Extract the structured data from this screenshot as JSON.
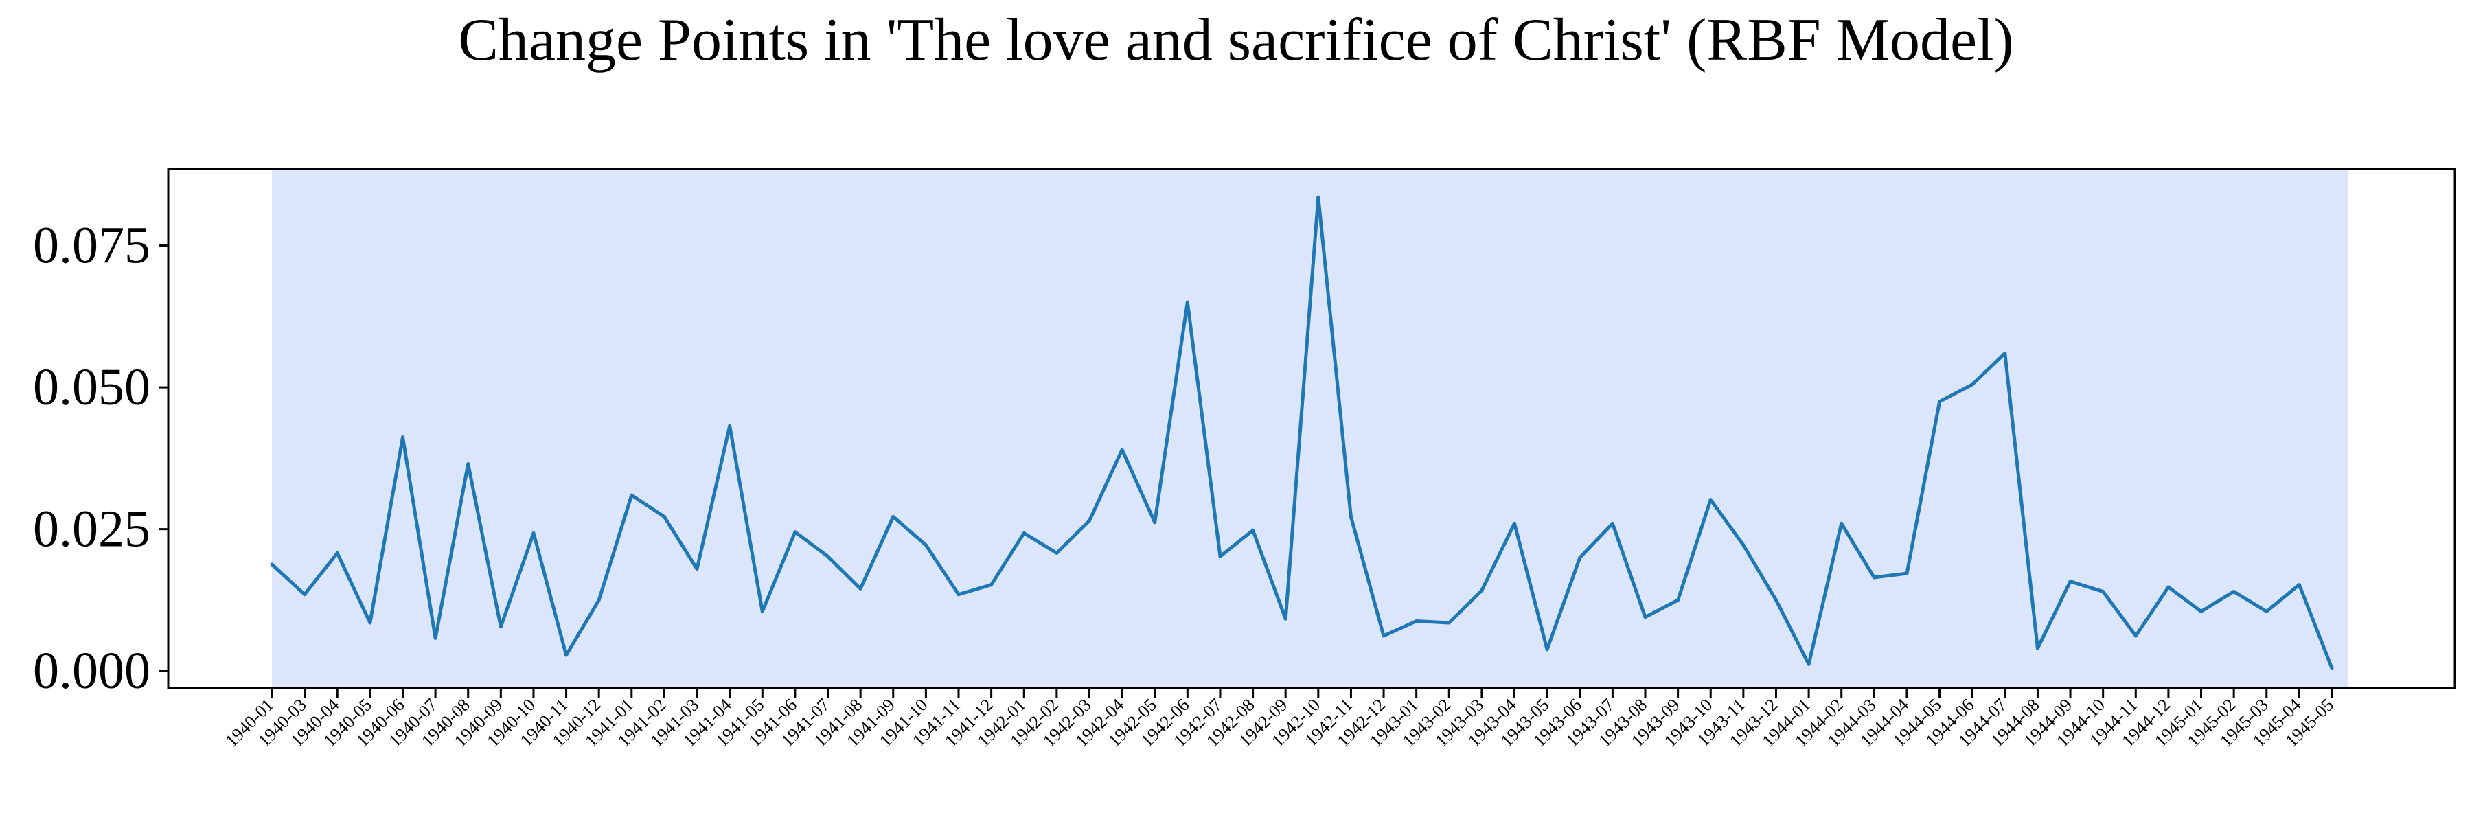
{
  "chart_data": {
    "type": "line",
    "title": "Change Points in 'The love and sacrifice of Christ' (RBF Model)",
    "xlabel": "",
    "ylabel": "",
    "ylim": [
      -0.003,
      0.0885
    ],
    "yticks": [
      "0.000",
      "0.025",
      "0.050",
      "0.075"
    ],
    "grid": false,
    "line_color": "#1f77b4",
    "segment_color": "#dbe6fa",
    "change_point_segment": {
      "start": "1940-01",
      "end": "1945-05"
    },
    "categories": [
      "1940-01",
      "1940-03",
      "1940-04",
      "1940-05",
      "1940-06",
      "1940-07",
      "1940-08",
      "1940-09",
      "1940-10",
      "1940-11",
      "1940-12",
      "1941-01",
      "1941-02",
      "1941-03",
      "1941-04",
      "1941-05",
      "1941-06",
      "1941-07",
      "1941-08",
      "1941-09",
      "1941-10",
      "1941-11",
      "1941-12",
      "1942-01",
      "1942-02",
      "1942-03",
      "1942-04",
      "1942-05",
      "1942-06",
      "1942-07",
      "1942-08",
      "1942-09",
      "1942-10",
      "1942-11",
      "1942-12",
      "1943-01",
      "1943-02",
      "1943-03",
      "1943-04",
      "1943-05",
      "1943-06",
      "1943-07",
      "1943-08",
      "1943-09",
      "1943-10",
      "1943-11",
      "1943-12",
      "1944-01",
      "1944-02",
      "1944-03",
      "1944-04",
      "1944-05",
      "1944-06",
      "1944-07",
      "1944-08",
      "1944-09",
      "1944-10",
      "1944-11",
      "1944-12",
      "1945-01",
      "1945-02",
      "1945-03",
      "1945-04",
      "1945-05"
    ],
    "values": [
      0.0188,
      0.0135,
      0.0208,
      0.0085,
      0.0412,
      0.0058,
      0.0365,
      0.0078,
      0.0243,
      0.0028,
      0.0125,
      0.031,
      0.0272,
      0.018,
      0.0432,
      0.0105,
      0.0245,
      0.0202,
      0.0145,
      0.0272,
      0.0222,
      0.0135,
      0.0152,
      0.0243,
      0.0208,
      0.0265,
      0.039,
      0.0262,
      0.065,
      0.0202,
      0.0248,
      0.0092,
      0.0835,
      0.0272,
      0.0062,
      0.0088,
      0.0085,
      0.0142,
      0.026,
      0.0038,
      0.02,
      0.026,
      0.0095,
      0.0125,
      0.0302,
      0.0222,
      0.0125,
      0.0012,
      0.026,
      0.0165,
      0.0172,
      0.0475,
      0.0505,
      0.056,
      0.004,
      0.0158,
      0.014,
      0.0062,
      0.0148,
      0.0105,
      0.014,
      0.0105,
      0.0152,
      0.0005
    ]
  }
}
